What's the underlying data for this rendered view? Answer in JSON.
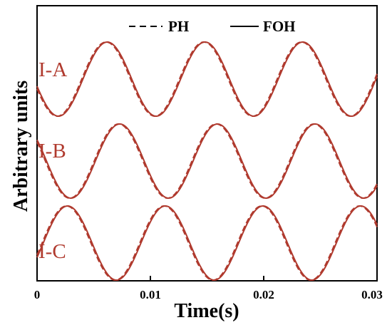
{
  "chart_data": {
    "type": "line",
    "xlabel": "Time(s)",
    "ylabel": "Arbitrary units",
    "xlim": [
      0,
      0.03
    ],
    "x_ticks": [
      "0",
      "0.01",
      "0.02",
      "0.03"
    ],
    "y_tick_labels_shown": false,
    "grid": false,
    "legend": {
      "placement": "top-center",
      "entries": [
        {
          "label": "PH",
          "style": "dashed"
        },
        {
          "label": "FOH",
          "style": "solid"
        }
      ]
    },
    "line_color": "#b03a2e",
    "panels": [
      {
        "label": "I-A",
        "series": [
          {
            "name": "PH",
            "style": "dashed",
            "frequency_hz": 116,
            "peaks_at_s": [
              0.0061,
              0.0147,
              0.0234
            ],
            "troughs_at_s": [
              0.0018,
              0.0104,
              0.019,
              0.0276
            ],
            "phase_lead_s": 0.0002
          },
          {
            "name": "FOH",
            "style": "solid",
            "frequency_hz": 116,
            "peaks_at_s": [
              0.0062,
              0.0148,
              0.0234
            ],
            "troughs_at_s": [
              0.0019,
              0.0105,
              0.0191,
              0.0277
            ],
            "phase_lead_s": 0
          }
        ]
      },
      {
        "label": "I-B",
        "series": [
          {
            "name": "PH",
            "style": "dashed",
            "frequency_hz": 116,
            "peaks_at_s": [
              0.0072,
              0.0158,
              0.0244
            ],
            "troughs_at_s": [
              0.0029,
              0.0115,
              0.0201,
              0.0287
            ],
            "phase_lead_s": 0.0002
          },
          {
            "name": "FOH",
            "style": "solid",
            "frequency_hz": 116,
            "peaks_at_s": [
              0.0073,
              0.0159,
              0.0245
            ],
            "troughs_at_s": [
              0.003,
              0.0116,
              0.0202,
              0.0288
            ],
            "phase_lead_s": 0
          }
        ]
      },
      {
        "label": "I-C",
        "series": [
          {
            "name": "PH",
            "style": "dashed",
            "frequency_hz": 116,
            "peaks_at_s": [
              0.0026,
              0.0112,
              0.0198,
              0.0284
            ],
            "troughs_at_s": [
              0.0069,
              0.0155,
              0.0241
            ],
            "phase_lead_s": 0.0002
          },
          {
            "name": "FOH",
            "style": "solid",
            "frequency_hz": 116,
            "peaks_at_s": [
              0.0027,
              0.0113,
              0.0199,
              0.0285
            ],
            "troughs_at_s": [
              0.007,
              0.0156,
              0.0242
            ],
            "phase_lead_s": 0
          }
        ]
      }
    ]
  }
}
